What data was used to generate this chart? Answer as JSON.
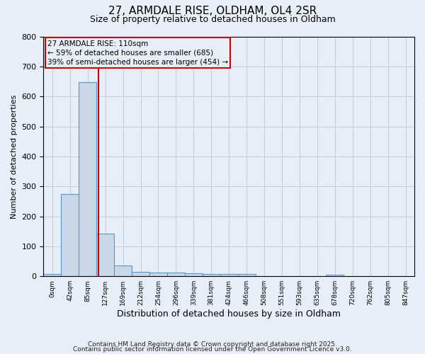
{
  "title1": "27, ARMDALE RISE, OLDHAM, OL4 2SR",
  "title2": "Size of property relative to detached houses in Oldham",
  "xlabel": "Distribution of detached houses by size in Oldham",
  "ylabel": "Number of detached properties",
  "bin_labels": [
    "0sqm",
    "42sqm",
    "85sqm",
    "127sqm",
    "169sqm",
    "212sqm",
    "254sqm",
    "296sqm",
    "339sqm",
    "381sqm",
    "424sqm",
    "466sqm",
    "508sqm",
    "551sqm",
    "593sqm",
    "635sqm",
    "678sqm",
    "720sqm",
    "762sqm",
    "805sqm",
    "847sqm"
  ],
  "bar_values": [
    8,
    275,
    648,
    142,
    35,
    15,
    12,
    12,
    10,
    8,
    8,
    8,
    0,
    0,
    0,
    0,
    5,
    0,
    0,
    0,
    0
  ],
  "bar_color": "#c8d8e8",
  "bar_edge_color": "#5599cc",
  "vline_color": "#cc0000",
  "annotation_text": "27 ARMDALE RISE: 110sqm\n← 59% of detached houses are smaller (685)\n39% of semi-detached houses are larger (454) →",
  "annotation_box_edge_color": "#cc0000",
  "ylim": [
    0,
    800
  ],
  "yticks": [
    0,
    100,
    200,
    300,
    400,
    500,
    600,
    700,
    800
  ],
  "footnote1": "Contains HM Land Registry data © Crown copyright and database right 2025.",
  "footnote2": "Contains public sector information licensed under the Open Government Licence v3.0.",
  "background_color": "#e8eef8",
  "grid_color": "#c0cce0",
  "vline_x_offset": 0.595
}
